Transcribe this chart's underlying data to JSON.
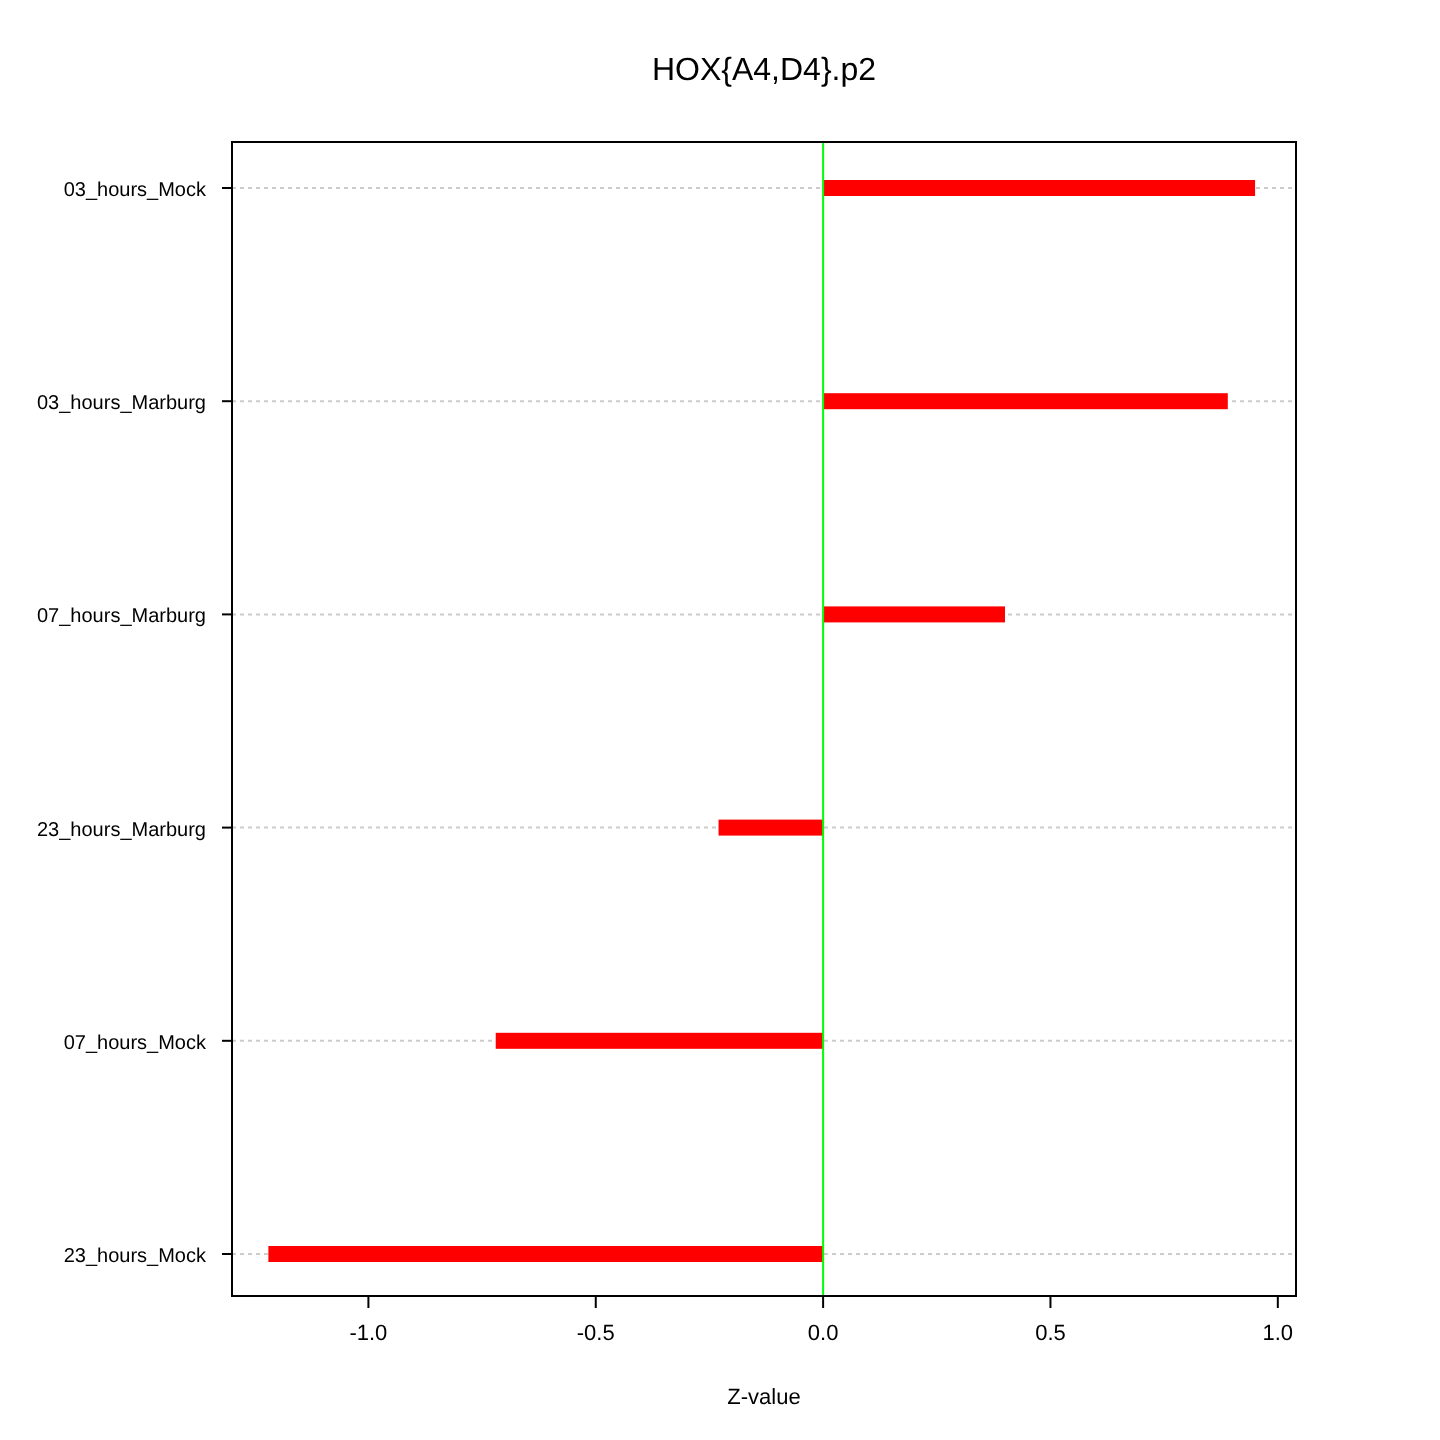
{
  "chart_data": {
    "type": "bar",
    "orientation": "horizontal",
    "title": "HOX{A4,D4}.p2",
    "xlabel": "Z-value",
    "categories": [
      "03_hours_Mock",
      "03_hours_Marburg",
      "07_hours_Marburg",
      "23_hours_Marburg",
      "07_hours_Mock",
      "23_hours_Mock"
    ],
    "values": [
      0.95,
      0.89,
      0.4,
      -0.23,
      -0.72,
      -1.22
    ],
    "color": "#ff0000",
    "xlim": [
      -1.3,
      1.04
    ],
    "xticks": [
      {
        "value": -1,
        "label": "-1.0"
      },
      {
        "value": -0.5,
        "label": "-0.5"
      },
      {
        "value": 0,
        "label": "0.0"
      },
      {
        "value": 0.5,
        "label": "0.5"
      },
      {
        "value": 1,
        "label": "1.0"
      }
    ],
    "grid": "y",
    "ref_lines": [
      {
        "axis": "x",
        "value": 0,
        "color": "#00ff00"
      }
    ]
  }
}
